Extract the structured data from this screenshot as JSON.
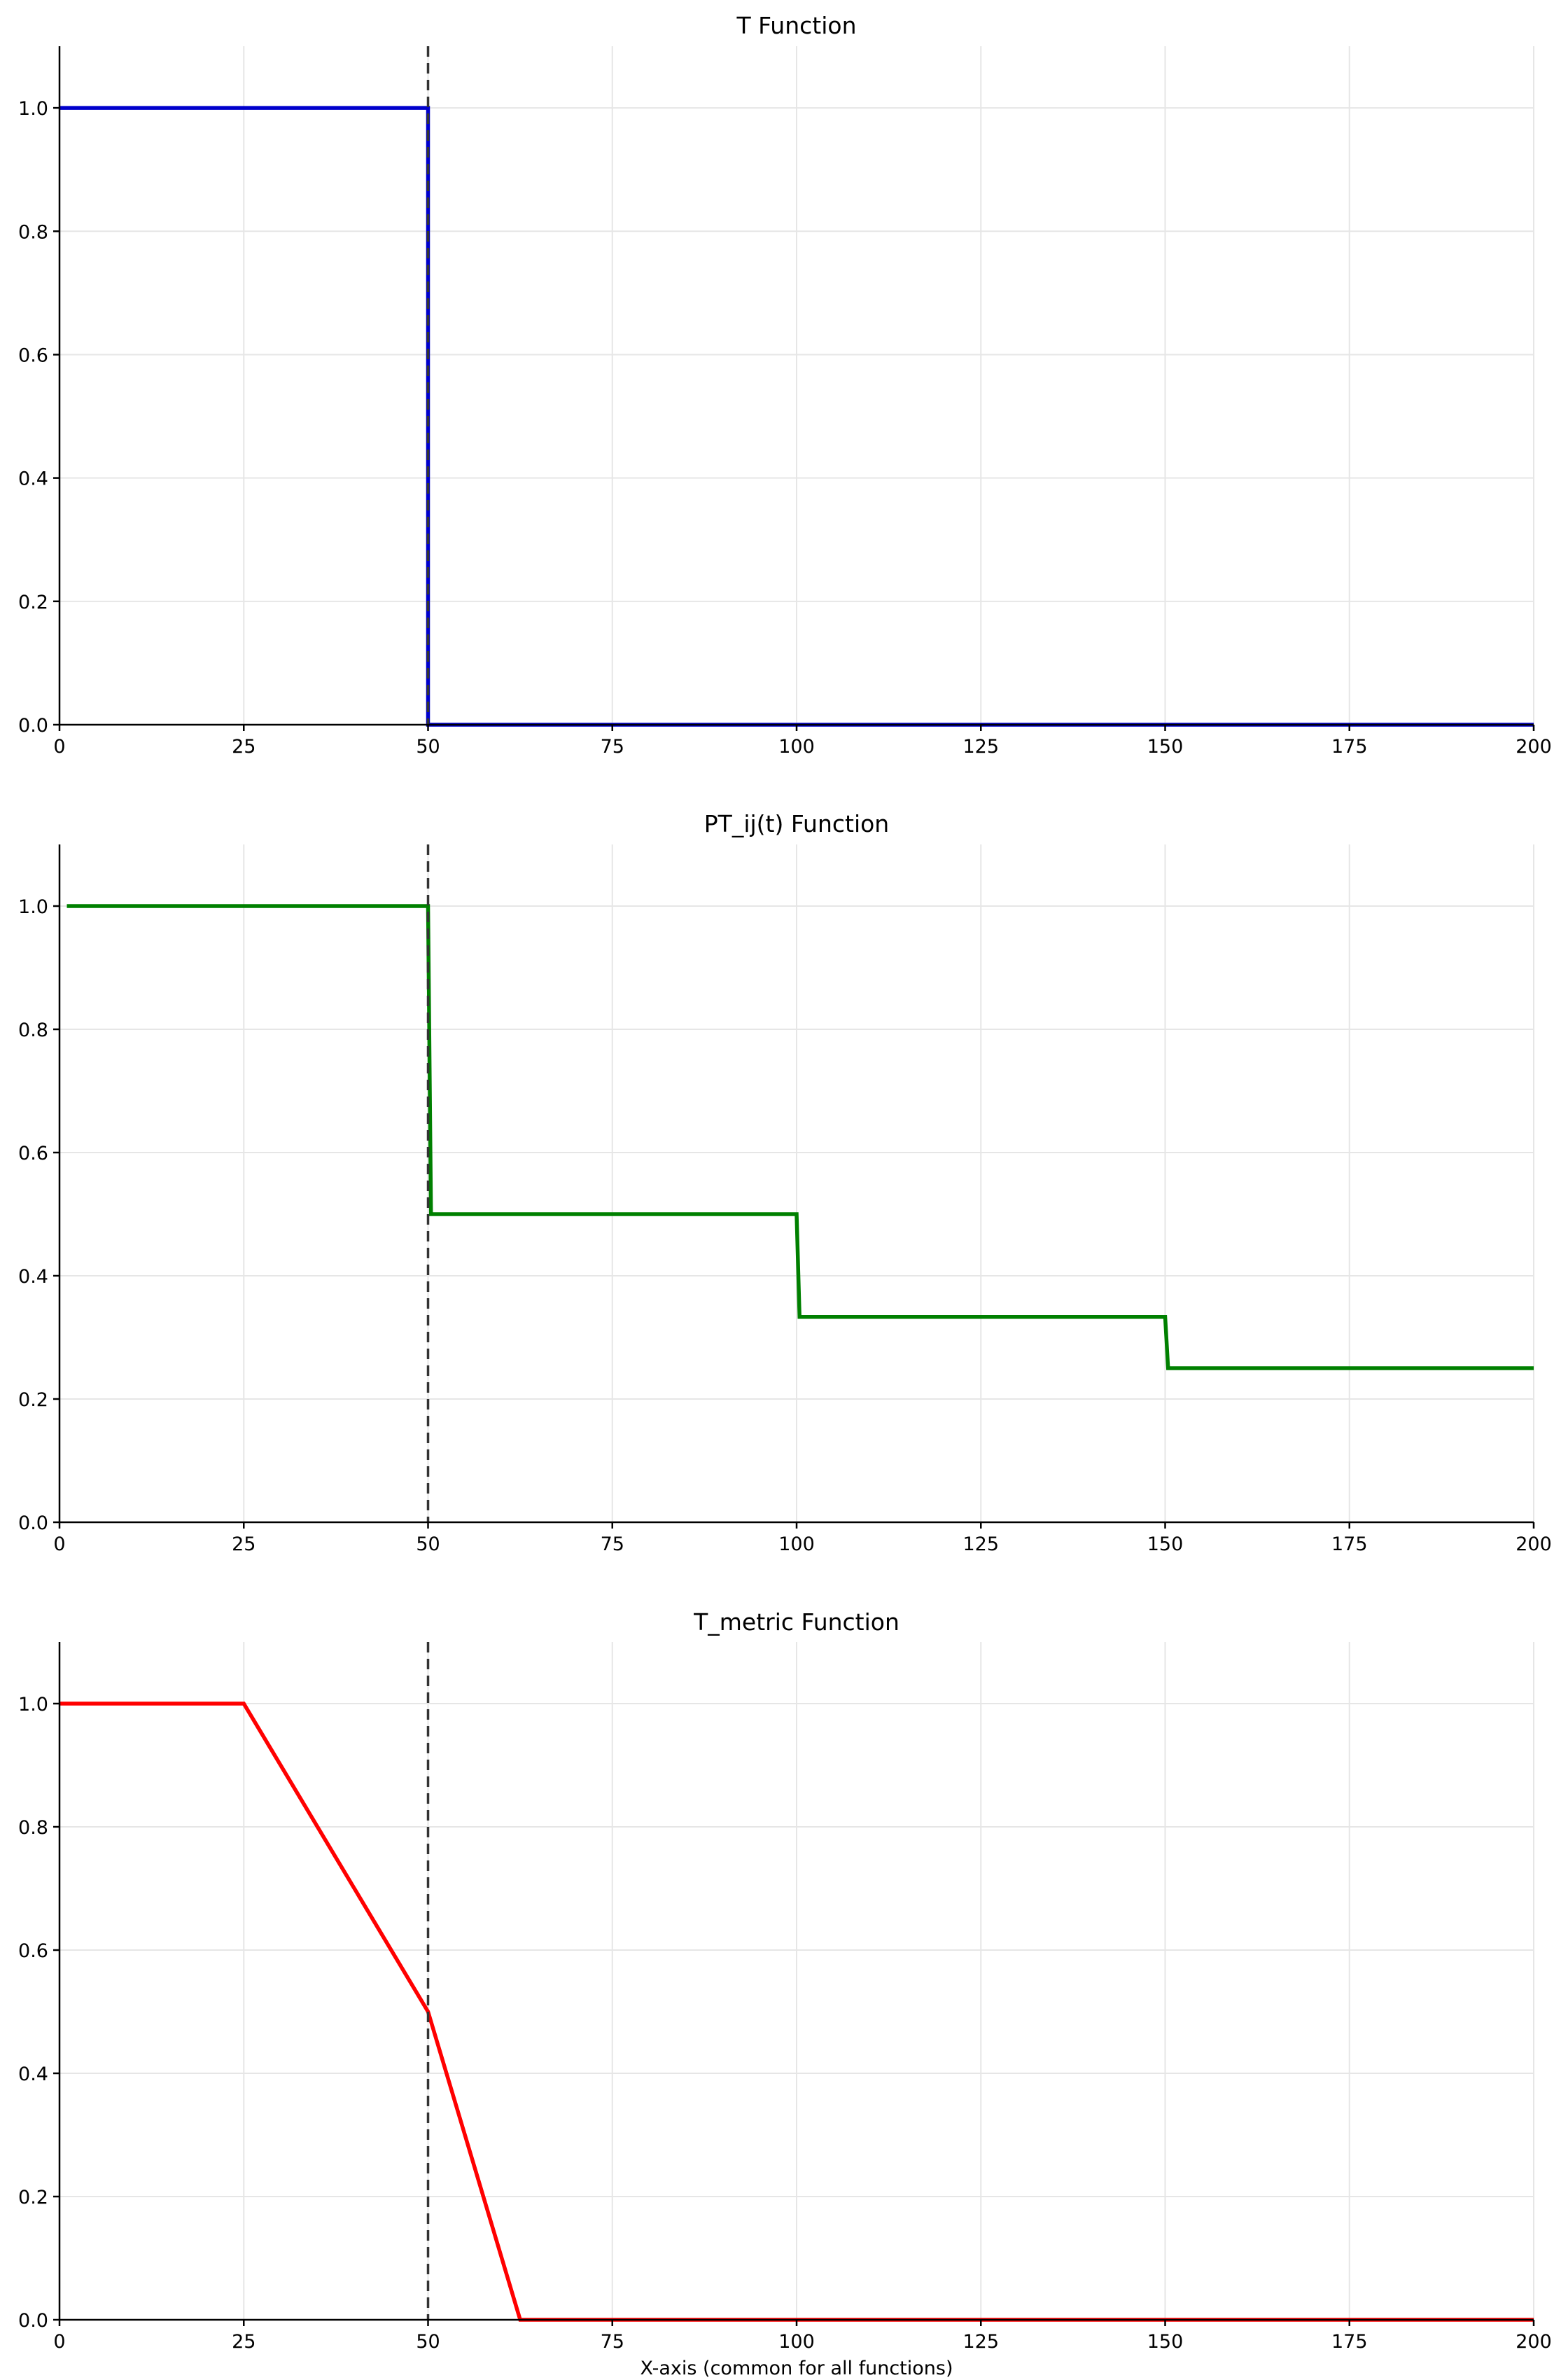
{
  "chart_data": [
    {
      "type": "line",
      "title": "T Function",
      "xlabel": "",
      "ylabel": "",
      "xlim": [
        0,
        200
      ],
      "ylim": [
        0,
        1.1
      ],
      "x_ticks": [
        0,
        25,
        50,
        75,
        100,
        125,
        150,
        175,
        200
      ],
      "y_ticks": [
        0.0,
        0.2,
        0.4,
        0.6,
        0.8,
        1.0
      ],
      "grid": true,
      "reference_line_x": 50,
      "series": [
        {
          "color": "#0000cc",
          "x": [
            0,
            50,
            50,
            200
          ],
          "y": [
            1.0,
            1.0,
            0.0,
            0.0
          ]
        }
      ]
    },
    {
      "type": "line",
      "title": "PT_ij(t) Function",
      "xlabel": "",
      "ylabel": "",
      "xlim": [
        0,
        200
      ],
      "ylim": [
        0,
        1.1
      ],
      "x_ticks": [
        0,
        25,
        50,
        75,
        100,
        125,
        150,
        175,
        200
      ],
      "y_ticks": [
        0.0,
        0.2,
        0.4,
        0.6,
        0.8,
        1.0
      ],
      "grid": true,
      "reference_line_x": 50,
      "series": [
        {
          "color": "#008000",
          "x": [
            1,
            50,
            50.4,
            100,
            100.4,
            150,
            150.4,
            200
          ],
          "y": [
            1.0,
            1.0,
            0.5,
            0.5,
            0.3333,
            0.3333,
            0.25,
            0.25
          ]
        }
      ]
    },
    {
      "type": "line",
      "title": "T_metric Function",
      "xlabel": "X-axis (common for all functions)",
      "ylabel": "",
      "xlim": [
        0,
        200
      ],
      "ylim": [
        0,
        1.1
      ],
      "x_ticks": [
        0,
        25,
        50,
        75,
        100,
        125,
        150,
        175,
        200
      ],
      "y_ticks": [
        0.0,
        0.2,
        0.4,
        0.6,
        0.8,
        1.0
      ],
      "grid": true,
      "reference_line_x": 50,
      "series": [
        {
          "color": "#ff0000",
          "x": [
            0,
            25,
            50,
            62.5,
            200
          ],
          "y": [
            1.0,
            1.0,
            0.5,
            0.0,
            0.0
          ]
        }
      ]
    }
  ]
}
